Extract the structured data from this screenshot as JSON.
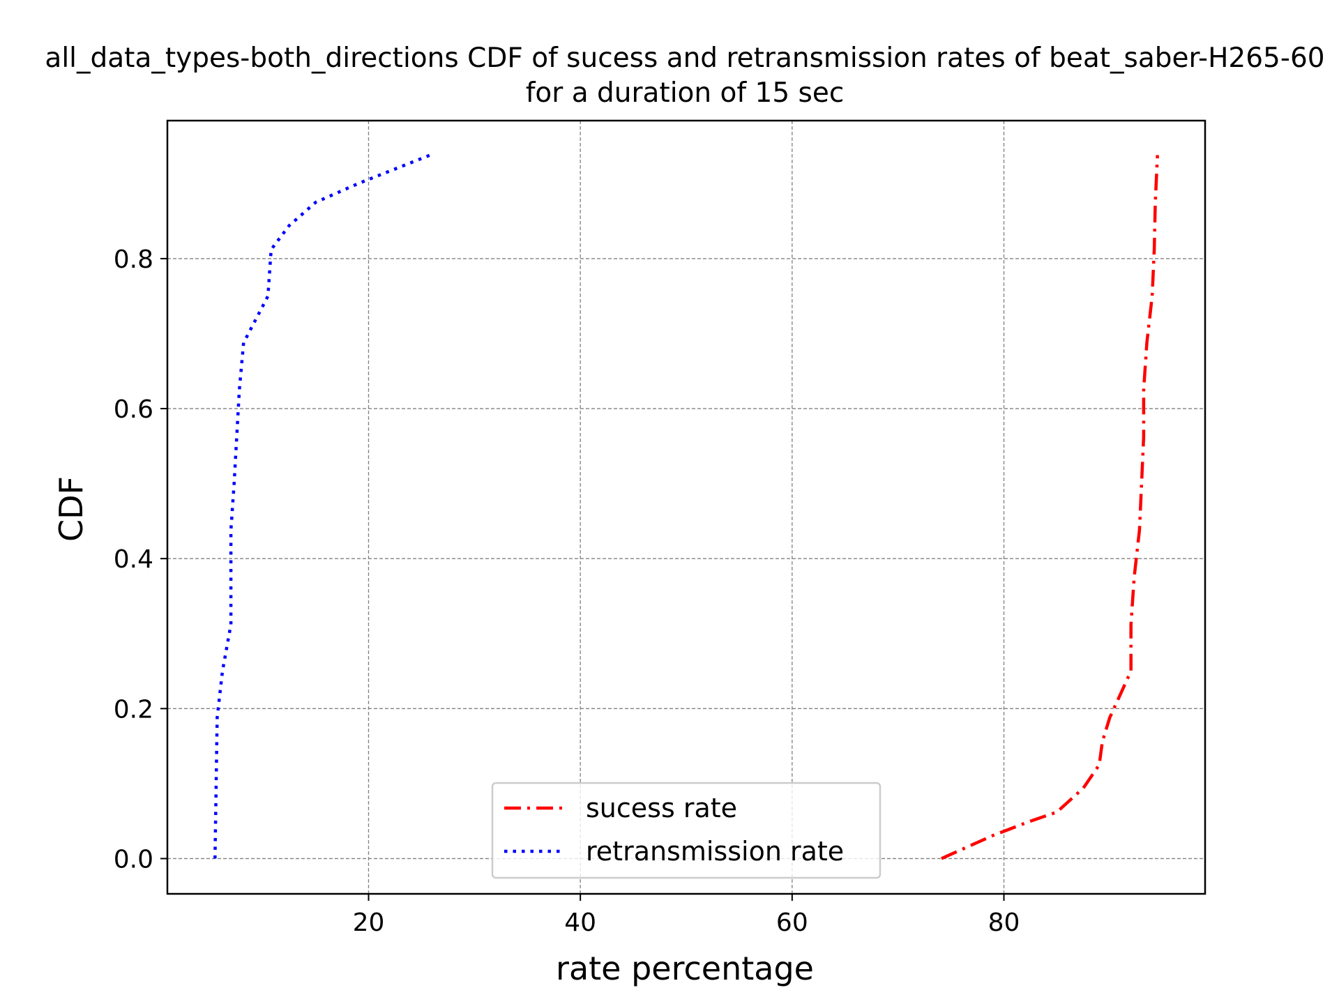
{
  "chart_data": {
    "type": "line",
    "title_line1": "all_data_types-both_directions CDF of sucess and retransmission rates of beat_saber-H265-60",
    "title_line2": "for a duration of 15 sec",
    "xlabel": "rate percentage",
    "ylabel": "CDF",
    "xlim": [
      1,
      99
    ],
    "ylim": [
      -0.047,
      0.984
    ],
    "xticks": [
      20,
      40,
      60,
      80
    ],
    "xtick_labels": [
      "20",
      "40",
      "60",
      "80"
    ],
    "yticks": [
      0.0,
      0.2,
      0.4,
      0.6,
      0.8
    ],
    "ytick_labels": [
      "0.0",
      "0.2",
      "0.4",
      "0.6",
      "0.8"
    ],
    "grid": true,
    "legend_position": "lower center",
    "series": [
      {
        "name": "sucess rate",
        "color": "#ff0000",
        "style": "dash-dot",
        "x": [
          74.1,
          79.0,
          82.5,
          85.0,
          87.5,
          89.0,
          89.3,
          90.0,
          92.0,
          92.0,
          92.3,
          92.8,
          93.0,
          93.2,
          93.2,
          93.5,
          94.0,
          94.2,
          94.3,
          94.5
        ],
        "y": [
          0.0,
          0.031,
          0.05,
          0.062,
          0.094,
          0.125,
          0.156,
          0.188,
          0.25,
          0.312,
          0.375,
          0.438,
          0.5,
          0.562,
          0.625,
          0.688,
          0.75,
          0.812,
          0.875,
          0.938
        ]
      },
      {
        "name": "retransmission rate",
        "color": "#0000ff",
        "style": "dotted",
        "x": [
          5.5,
          5.7,
          6.2,
          7.0,
          7.0,
          7.3,
          7.8,
          8.2,
          8.5,
          10.5,
          10.8,
          12.5,
          15.0,
          19.0,
          25.8
        ],
        "y": [
          0.0,
          0.188,
          0.25,
          0.312,
          0.438,
          0.5,
          0.625,
          0.688,
          0.696,
          0.75,
          0.812,
          0.844,
          0.875,
          0.9,
          0.938
        ]
      }
    ]
  }
}
